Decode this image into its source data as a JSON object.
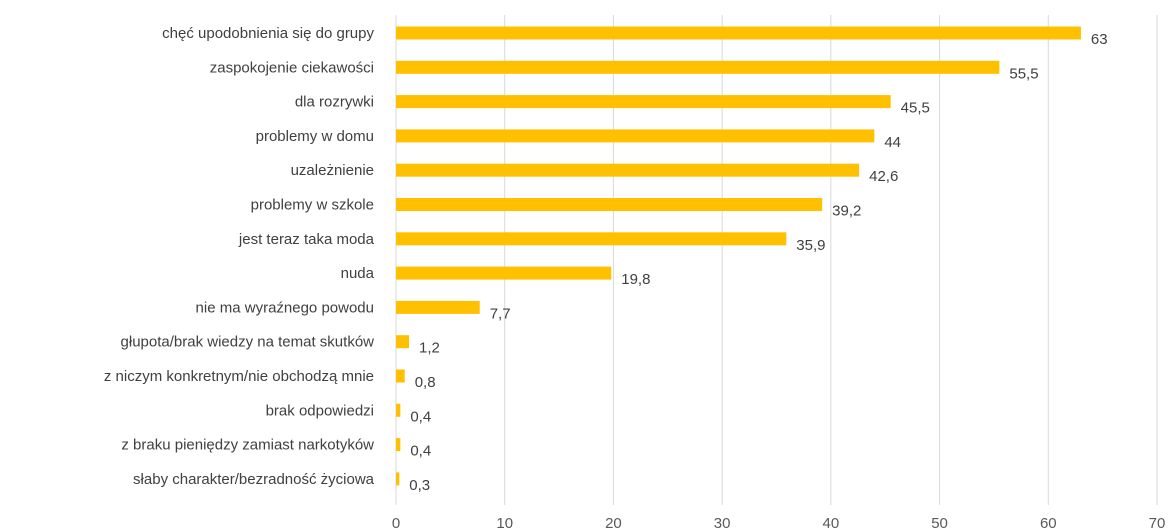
{
  "chart_data": {
    "type": "bar",
    "orientation": "horizontal",
    "categories": [
      "chęć upodobnienia się do grupy",
      "zaspokojenie ciekawości",
      "dla rozrywki",
      "problemy w domu",
      "uzależnienie",
      "problemy w szkole",
      "jest teraz taka moda",
      "nuda",
      "nie ma wyraźnego powodu",
      "głupota/brak wiedzy na temat skutków",
      "z niczym konkretnym/nie obchodzą mnie",
      "brak odpowiedzi",
      "z braku pieniędzy zamiast narkotyków",
      "słaby charakter/bezradność życiowa"
    ],
    "values": [
      63,
      55.5,
      45.5,
      44,
      42.6,
      39.2,
      35.9,
      19.8,
      7.7,
      1.2,
      0.8,
      0.4,
      0.4,
      0.3
    ],
    "value_labels": [
      "63",
      "55,5",
      "45,5",
      "44",
      "42,6",
      "39,2",
      "35,9",
      "19,8",
      "7,7",
      "1,2",
      "0,8",
      "0,4",
      "0,4",
      "0,3"
    ],
    "xlim": [
      0,
      70
    ],
    "x_ticks": [
      "0",
      "10",
      "20",
      "30",
      "40",
      "50",
      "60",
      "70"
    ],
    "grid": true,
    "legend": "none",
    "bar_color": "#FFC000"
  }
}
